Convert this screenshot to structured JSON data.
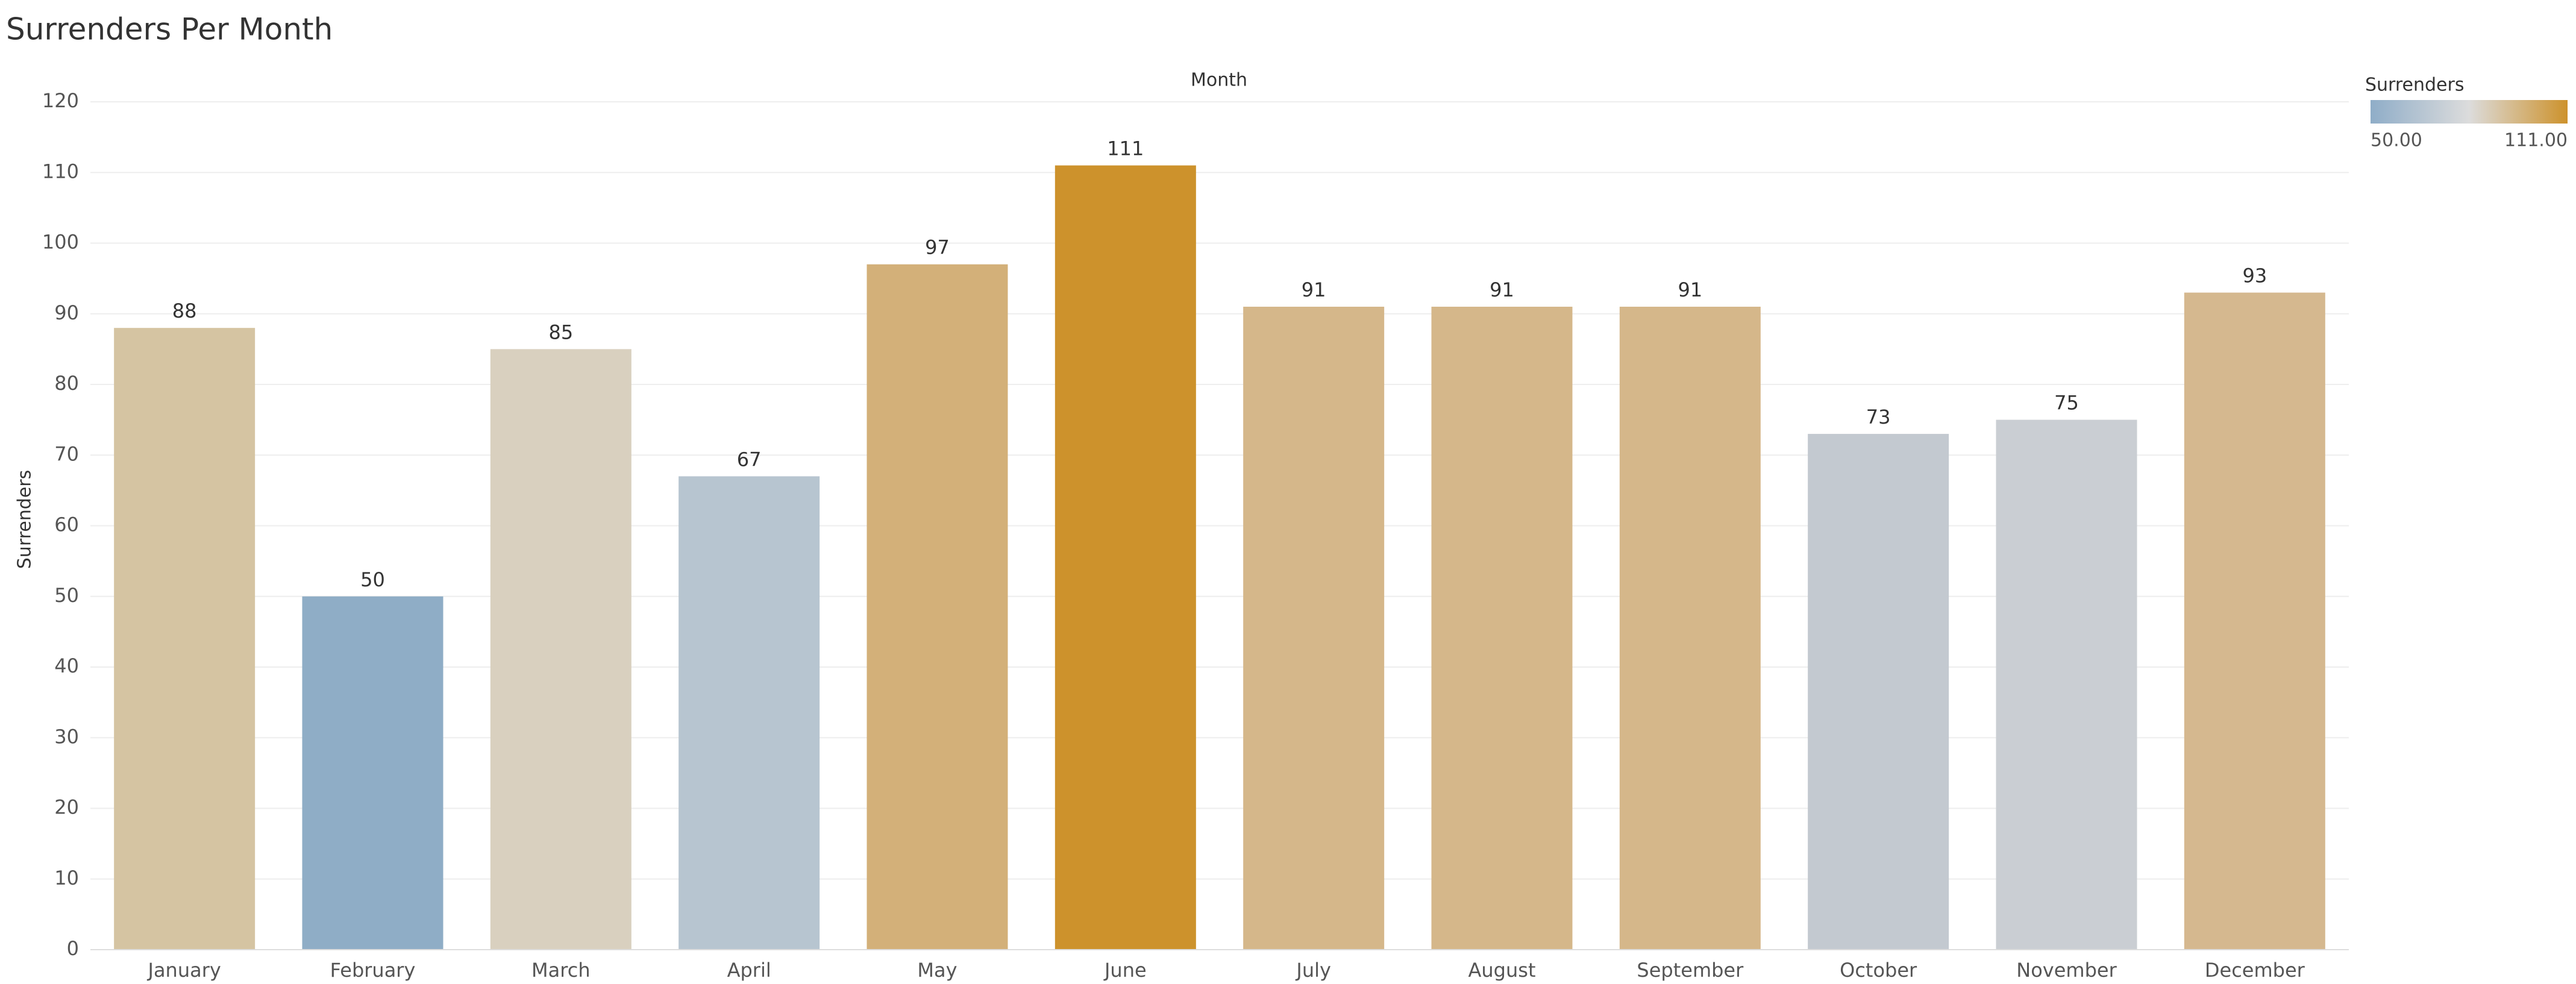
{
  "chart_data": {
    "type": "bar",
    "title": "Surrenders Per Month",
    "x_label": "Month",
    "y_label": "Surrenders",
    "categories": [
      "January",
      "February",
      "March",
      "April",
      "May",
      "June",
      "July",
      "August",
      "September",
      "October",
      "November",
      "December"
    ],
    "values": [
      88,
      50,
      85,
      67,
      97,
      111,
      91,
      91,
      91,
      73,
      75,
      93
    ],
    "colors": [
      "#d5c4a2",
      "#8fadc6",
      "#d9d0bf",
      "#b7c5d0",
      "#d3b079",
      "#cd922c",
      "#d5b78a",
      "#d5b78a",
      "#d5b78a",
      "#c3c9d0",
      "#caced3",
      "#d5b88f"
    ],
    "ylim": [
      0,
      120
    ],
    "yticks": [
      0,
      10,
      20,
      30,
      40,
      50,
      60,
      70,
      80,
      90,
      100,
      110,
      120
    ],
    "grid": true,
    "legend": {
      "title": "Surrenders",
      "colors": [
        "#8fadc8",
        "#dcdcdc",
        "#cd922c"
      ],
      "ticks": [
        {
          "value": 50,
          "label": "50.00"
        },
        {
          "value": 111,
          "label": "111.00"
        }
      ]
    }
  }
}
